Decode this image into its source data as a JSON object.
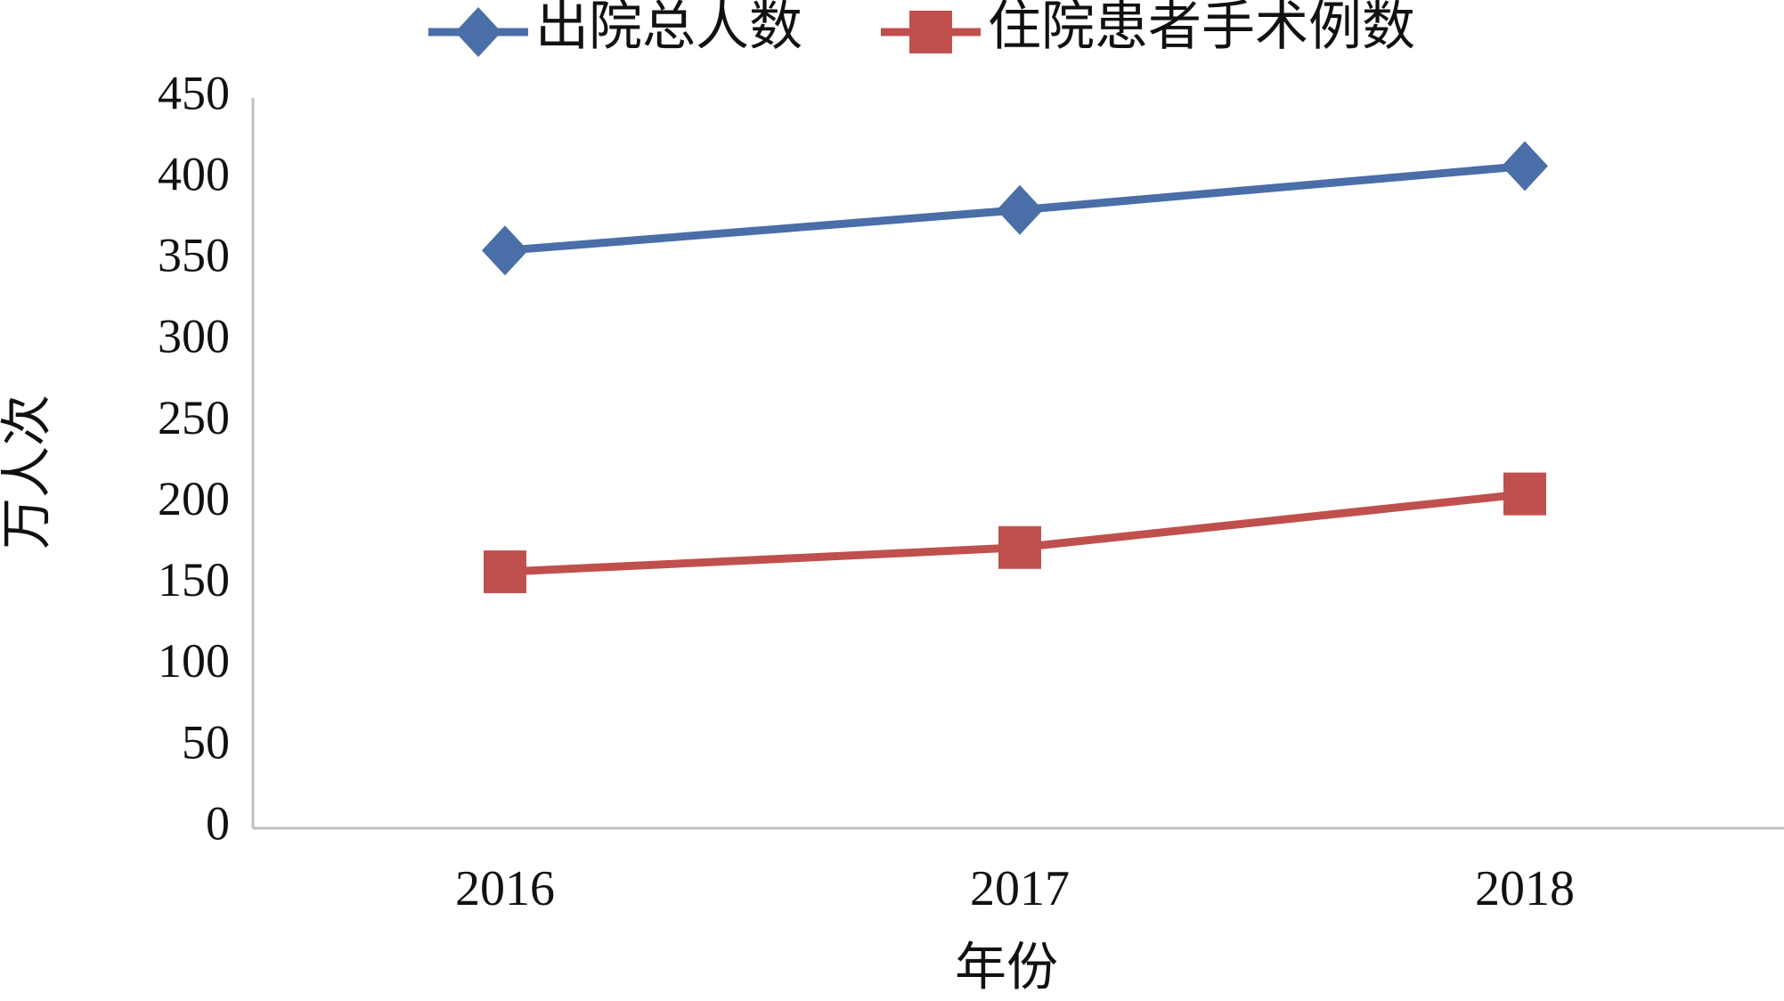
{
  "chart_data": {
    "type": "line",
    "x_label": "年份",
    "y_label": "万人次",
    "categories": [
      "2016",
      "2017",
      "2018"
    ],
    "series": [
      {
        "name": "出院总人数",
        "color": "#4a6ea8",
        "marker": "diamond",
        "values": [
          356,
          381,
          408
        ]
      },
      {
        "name": "住院患者手术例数",
        "color": "#c0504d",
        "marker": "square",
        "values": [
          158,
          173,
          206
        ]
      }
    ],
    "ylim": [
      0,
      450
    ],
    "yticks": [
      0,
      50,
      100,
      150,
      200,
      250,
      300,
      350,
      400,
      450
    ],
    "grid": false,
    "legend": "top"
  }
}
